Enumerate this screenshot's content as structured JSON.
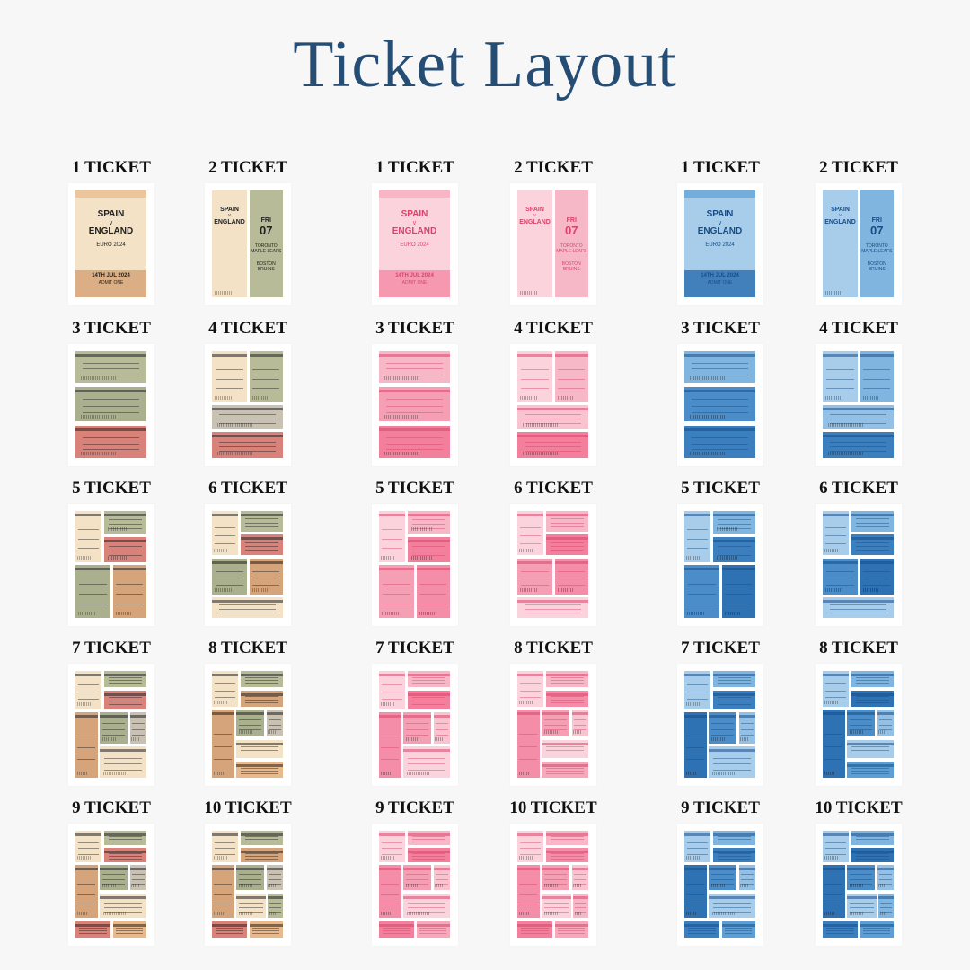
{
  "title": "Ticket Layout",
  "columns": [
    {
      "theme": "vintage",
      "colors": {
        "cream": "#f4e2c6",
        "tan": "#e8b98c",
        "sage": "#b7bb98",
        "olive": "#aab08e",
        "red": "#d9827a",
        "tanDark": "#d6a47a",
        "gray": "#c9c2b2",
        "ink": "#222222"
      }
    },
    {
      "theme": "vintage",
      "colors": {
        "cream": "#f4e2c6",
        "tan": "#e8b98c",
        "sage": "#b7bb98",
        "olive": "#aab08e",
        "red": "#d9827a",
        "tanDark": "#d6a47a",
        "gray": "#c9c2b2",
        "ink": "#222222"
      }
    },
    {
      "theme": "pink",
      "colors": {
        "cream": "#fbd3dc",
        "tan": "#f7a8bb",
        "sage": "#f6b8c7",
        "olive": "#f59fb4",
        "red": "#f27f9c",
        "tanDark": "#f48ea8",
        "gray": "#f9c4d0",
        "ink": "#d9436b"
      }
    },
    {
      "theme": "pink",
      "colors": {
        "cream": "#fbd3dc",
        "tan": "#f7a8bb",
        "sage": "#f6b8c7",
        "olive": "#f59fb4",
        "red": "#f27f9c",
        "tanDark": "#f48ea8",
        "gray": "#f9c4d0",
        "ink": "#d9436b"
      }
    },
    {
      "theme": "blue",
      "colors": {
        "cream": "#a8cdea",
        "tan": "#5d9fd4",
        "sage": "#7fb5df",
        "olive": "#4a8dc8",
        "red": "#3b7fbf",
        "tanDark": "#2f72b3",
        "gray": "#93c0e4",
        "ink": "#174d86"
      }
    },
    {
      "theme": "blue",
      "colors": {
        "cream": "#a8cdea",
        "tan": "#5d9fd4",
        "sage": "#7fb5df",
        "olive": "#4a8dc8",
        "red": "#3b7fbf",
        "tanDark": "#2f72b3",
        "gray": "#93c0e4",
        "ink": "#174d86"
      }
    }
  ],
  "rows": [
    {
      "labels": [
        "1 TICKET",
        "2 TICKET",
        "1 TICKET",
        "2 TICKET",
        "1 TICKET",
        "2 TICKET"
      ]
    },
    {
      "labels": [
        "3 TICKET",
        "4 TICKET",
        "3 TICKET",
        "4 TICKET",
        "3 TICKET",
        "4 TICKET"
      ]
    },
    {
      "labels": [
        "5 TICKET",
        "6 TICKET",
        "5 TICKET",
        "6 TICKET",
        "5 TICKET",
        "6 TICKET"
      ]
    },
    {
      "labels": [
        "7 TICKET",
        "8 TICKET",
        "7 TICKET",
        "8 TICKET",
        "7 TICKET",
        "8 TICKET"
      ]
    },
    {
      "labels": [
        "9 TICKET",
        "10 TICKET",
        "9 TICKET",
        "10 TICKET",
        "9 TICKET",
        "10 TICKET"
      ]
    }
  ],
  "hero": {
    "line1": "SPAIN",
    "line2": "v",
    "line3": "ENGLAND",
    "event": "EURO 2024",
    "date": "14TH JUL 2024",
    "admit": "ADMIT ONE"
  },
  "second": {
    "big": "07",
    "day": "FRI",
    "team1": "TORONTO MAPLE LEAFS",
    "team2": "BOSTON BRUINS"
  }
}
